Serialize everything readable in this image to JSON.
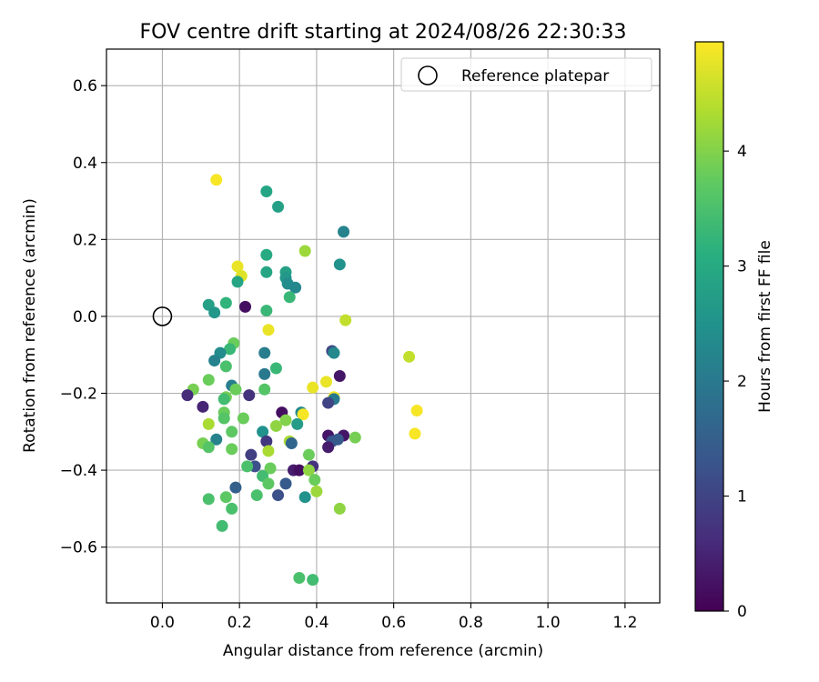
{
  "chart_data": {
    "type": "scatter",
    "title": "FOV centre drift starting at 2024/08/26 22:30:33",
    "xlabel": "Angular distance from reference (arcmin)",
    "ylabel": "Rotation from reference (arcmin)",
    "xlim": [
      -0.145,
      1.29
    ],
    "ylim": [
      -0.745,
      0.695
    ],
    "xticks": [
      0.0,
      0.2,
      0.4,
      0.6,
      0.8,
      1.0,
      1.2
    ],
    "xtick_labels": [
      "0.0",
      "0.2",
      "0.4",
      "0.6",
      "0.8",
      "1.0",
      "1.2"
    ],
    "yticks": [
      -0.6,
      -0.4,
      -0.2,
      0.0,
      0.2,
      0.4,
      0.6
    ],
    "ytick_labels": [
      "−0.6",
      "−0.4",
      "−0.2",
      "0.0",
      "0.2",
      "0.4",
      "0.6"
    ],
    "grid": true,
    "legend": {
      "placement": "top-right",
      "entries": [
        {
          "label": "Reference platepar",
          "marker": "open-circle",
          "color": "#000000"
        }
      ]
    },
    "reference": {
      "x": 0.0,
      "y": 0.0
    },
    "colorbar": {
      "label": "Hours from first FF file",
      "range": [
        0,
        4.95
      ],
      "ticks": [
        0,
        1,
        2,
        3,
        4
      ],
      "tick_labels": [
        "0",
        "1",
        "2",
        "3",
        "4"
      ],
      "colormap": "viridis"
    },
    "points": [
      {
        "x": 0.14,
        "y": 0.355,
        "h": 4.9
      },
      {
        "x": 0.27,
        "y": 0.325,
        "h": 2.9
      },
      {
        "x": 0.3,
        "y": 0.285,
        "h": 2.8
      },
      {
        "x": 0.47,
        "y": 0.22,
        "h": 2.2
      },
      {
        "x": 0.37,
        "y": 0.17,
        "h": 4.2
      },
      {
        "x": 0.27,
        "y": 0.16,
        "h": 3.0
      },
      {
        "x": 0.46,
        "y": 0.135,
        "h": 2.5
      },
      {
        "x": 0.195,
        "y": 0.13,
        "h": 4.8
      },
      {
        "x": 0.27,
        "y": 0.115,
        "h": 2.9
      },
      {
        "x": 0.32,
        "y": 0.115,
        "h": 2.8
      },
      {
        "x": 0.205,
        "y": 0.105,
        "h": 4.7
      },
      {
        "x": 0.32,
        "y": 0.1,
        "h": 2.6
      },
      {
        "x": 0.195,
        "y": 0.09,
        "h": 2.9
      },
      {
        "x": 0.325,
        "y": 0.085,
        "h": 2.4
      },
      {
        "x": 0.345,
        "y": 0.075,
        "h": 2.3
      },
      {
        "x": 0.33,
        "y": 0.05,
        "h": 3.3
      },
      {
        "x": 0.165,
        "y": 0.035,
        "h": 3.2
      },
      {
        "x": 0.12,
        "y": 0.03,
        "h": 2.8
      },
      {
        "x": 0.215,
        "y": 0.025,
        "h": 0.2
      },
      {
        "x": 0.27,
        "y": 0.015,
        "h": 3.3
      },
      {
        "x": 0.135,
        "y": 0.01,
        "h": 2.6
      },
      {
        "x": 0.475,
        "y": -0.01,
        "h": 4.5
      },
      {
        "x": 0.275,
        "y": -0.035,
        "h": 4.8
      },
      {
        "x": 0.185,
        "y": -0.07,
        "h": 3.8
      },
      {
        "x": 0.175,
        "y": -0.085,
        "h": 3.3
      },
      {
        "x": 0.15,
        "y": -0.095,
        "h": 2.4
      },
      {
        "x": 0.265,
        "y": -0.095,
        "h": 2.1
      },
      {
        "x": 0.44,
        "y": -0.09,
        "h": 1.1
      },
      {
        "x": 0.445,
        "y": -0.095,
        "h": 2.3
      },
      {
        "x": 0.64,
        "y": -0.105,
        "h": 4.5
      },
      {
        "x": 0.135,
        "y": -0.115,
        "h": 2.2
      },
      {
        "x": 0.165,
        "y": -0.13,
        "h": 3.5
      },
      {
        "x": 0.295,
        "y": -0.135,
        "h": 3.3
      },
      {
        "x": 0.265,
        "y": -0.15,
        "h": 2.0
      },
      {
        "x": 0.46,
        "y": -0.155,
        "h": 0.3
      },
      {
        "x": 0.12,
        "y": -0.165,
        "h": 3.8
      },
      {
        "x": 0.425,
        "y": -0.17,
        "h": 4.8
      },
      {
        "x": 0.18,
        "y": -0.18,
        "h": 2.1
      },
      {
        "x": 0.08,
        "y": -0.19,
        "h": 3.9
      },
      {
        "x": 0.19,
        "y": -0.19,
        "h": 3.8
      },
      {
        "x": 0.265,
        "y": -0.19,
        "h": 3.6
      },
      {
        "x": 0.39,
        "y": -0.185,
        "h": 4.8
      },
      {
        "x": 0.065,
        "y": -0.205,
        "h": 0.6
      },
      {
        "x": 0.225,
        "y": -0.205,
        "h": 0.7
      },
      {
        "x": 0.165,
        "y": -0.21,
        "h": 3.9
      },
      {
        "x": 0.16,
        "y": -0.215,
        "h": 3.4
      },
      {
        "x": 0.445,
        "y": -0.21,
        "h": 4.9
      },
      {
        "x": 0.445,
        "y": -0.215,
        "h": 2.0
      },
      {
        "x": 0.43,
        "y": -0.225,
        "h": 1.0
      },
      {
        "x": 0.105,
        "y": -0.235,
        "h": 0.5
      },
      {
        "x": 0.16,
        "y": -0.25,
        "h": 3.8
      },
      {
        "x": 0.31,
        "y": -0.25,
        "h": 0.2
      },
      {
        "x": 0.36,
        "y": -0.25,
        "h": 2.3
      },
      {
        "x": 0.365,
        "y": -0.255,
        "h": 4.9
      },
      {
        "x": 0.66,
        "y": -0.245,
        "h": 4.9
      },
      {
        "x": 0.16,
        "y": -0.265,
        "h": 3.6
      },
      {
        "x": 0.21,
        "y": -0.265,
        "h": 3.8
      },
      {
        "x": 0.32,
        "y": -0.27,
        "h": 4.0
      },
      {
        "x": 0.35,
        "y": -0.28,
        "h": 2.7
      },
      {
        "x": 0.12,
        "y": -0.28,
        "h": 4.3
      },
      {
        "x": 0.295,
        "y": -0.285,
        "h": 4.1
      },
      {
        "x": 0.18,
        "y": -0.3,
        "h": 3.7
      },
      {
        "x": 0.26,
        "y": -0.3,
        "h": 2.5
      },
      {
        "x": 0.655,
        "y": -0.305,
        "h": 4.9
      },
      {
        "x": 0.43,
        "y": -0.31,
        "h": 0.3
      },
      {
        "x": 0.47,
        "y": -0.31,
        "h": 0.3
      },
      {
        "x": 0.5,
        "y": -0.315,
        "h": 3.9
      },
      {
        "x": 0.14,
        "y": -0.32,
        "h": 2.2
      },
      {
        "x": 0.27,
        "y": -0.325,
        "h": 0.8
      },
      {
        "x": 0.33,
        "y": -0.325,
        "h": 4.3
      },
      {
        "x": 0.335,
        "y": -0.33,
        "h": 1.6
      },
      {
        "x": 0.44,
        "y": -0.325,
        "h": 1.3
      },
      {
        "x": 0.455,
        "y": -0.32,
        "h": 1.4
      },
      {
        "x": 0.105,
        "y": -0.33,
        "h": 3.9
      },
      {
        "x": 0.43,
        "y": -0.34,
        "h": 0.4
      },
      {
        "x": 0.12,
        "y": -0.34,
        "h": 3.6
      },
      {
        "x": 0.18,
        "y": -0.345,
        "h": 3.8
      },
      {
        "x": 0.275,
        "y": -0.35,
        "h": 4.3
      },
      {
        "x": 0.23,
        "y": -0.36,
        "h": 0.9
      },
      {
        "x": 0.38,
        "y": -0.36,
        "h": 3.8
      },
      {
        "x": 0.39,
        "y": -0.39,
        "h": 0.7
      },
      {
        "x": 0.24,
        "y": -0.39,
        "h": 1.2
      },
      {
        "x": 0.22,
        "y": -0.39,
        "h": 3.5
      },
      {
        "x": 0.28,
        "y": -0.395,
        "h": 3.8
      },
      {
        "x": 0.34,
        "y": -0.4,
        "h": 0.4
      },
      {
        "x": 0.355,
        "y": -0.4,
        "h": 0.2
      },
      {
        "x": 0.38,
        "y": -0.4,
        "h": 4.1
      },
      {
        "x": 0.26,
        "y": -0.415,
        "h": 3.4
      },
      {
        "x": 0.395,
        "y": -0.425,
        "h": 3.8
      },
      {
        "x": 0.275,
        "y": -0.435,
        "h": 3.7
      },
      {
        "x": 0.32,
        "y": -0.435,
        "h": 1.4
      },
      {
        "x": 0.19,
        "y": -0.445,
        "h": 1.5
      },
      {
        "x": 0.4,
        "y": -0.455,
        "h": 4.2
      },
      {
        "x": 0.245,
        "y": -0.465,
        "h": 3.5
      },
      {
        "x": 0.3,
        "y": -0.465,
        "h": 1.2
      },
      {
        "x": 0.165,
        "y": -0.47,
        "h": 3.7
      },
      {
        "x": 0.37,
        "y": -0.47,
        "h": 2.5
      },
      {
        "x": 0.12,
        "y": -0.475,
        "h": 3.5
      },
      {
        "x": 0.18,
        "y": -0.5,
        "h": 3.5
      },
      {
        "x": 0.46,
        "y": -0.5,
        "h": 4.1
      },
      {
        "x": 0.155,
        "y": -0.545,
        "h": 3.4
      },
      {
        "x": 0.355,
        "y": -0.68,
        "h": 3.5
      },
      {
        "x": 0.39,
        "y": -0.685,
        "h": 3.4
      }
    ]
  }
}
